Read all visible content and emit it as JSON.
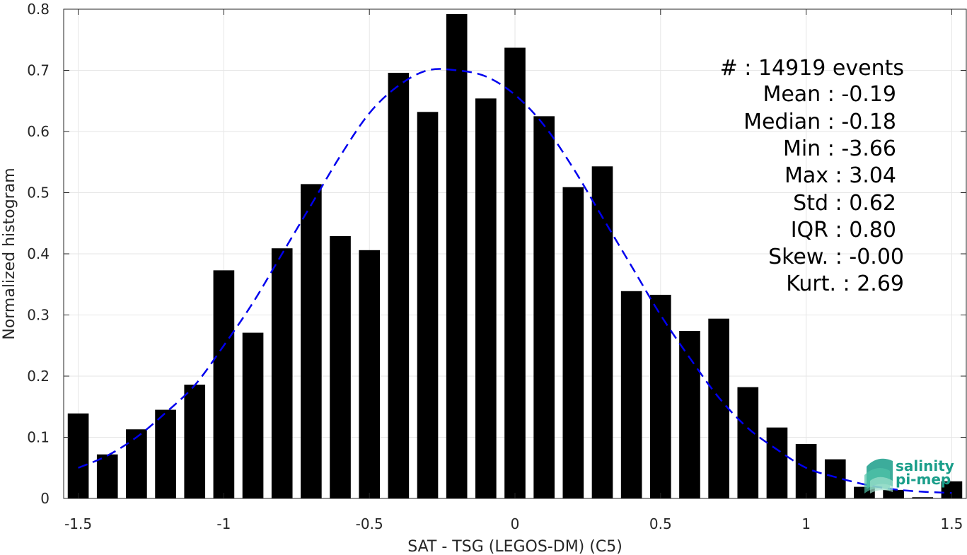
{
  "chart_data": {
    "type": "bar",
    "xlabel": "SAT - TSG (LEGOS-DM) (C5)",
    "ylabel": "Normalized histogram",
    "xlim": [
      -1.55,
      1.55
    ],
    "ylim": [
      0,
      0.8
    ],
    "xticks": [
      -1.5,
      -1,
      -0.5,
      0,
      0.5,
      1,
      1.5
    ],
    "xtick_labels": [
      "-1.5",
      "-1",
      "-0.5",
      "0",
      "0.5",
      "1",
      "1.5"
    ],
    "yticks": [
      0,
      0.1,
      0.2,
      0.3,
      0.4,
      0.5,
      0.6,
      0.7,
      0.8
    ],
    "ytick_labels": [
      "0",
      "0.1",
      "0.2",
      "0.3",
      "0.4",
      "0.5",
      "0.6",
      "0.7",
      "0.8"
    ],
    "grid": true,
    "bar_color": "#000000",
    "bins": [
      -1.5,
      -1.4,
      -1.3,
      -1.2,
      -1.1,
      -1.0,
      -0.9,
      -0.8,
      -0.7,
      -0.6,
      -0.5,
      -0.4,
      -0.3,
      -0.2,
      -0.1,
      0.0,
      0.1,
      0.2,
      0.3,
      0.4,
      0.5,
      0.6,
      0.7,
      0.8,
      0.9,
      1.0,
      1.1,
      1.2,
      1.3,
      1.4,
      1.5
    ],
    "values": [
      0.139,
      0.072,
      0.113,
      0.145,
      0.186,
      0.373,
      0.271,
      0.409,
      0.514,
      0.429,
      0.406,
      0.696,
      0.632,
      0.792,
      0.654,
      0.737,
      0.625,
      0.509,
      0.543,
      0.339,
      0.333,
      0.274,
      0.294,
      0.182,
      0.116,
      0.089,
      0.064,
      0.019,
      0.014,
      0.002,
      0.028
    ],
    "fit": {
      "style": "dashed",
      "color": "#0000ee",
      "x": [
        -1.5,
        -1.4,
        -1.3,
        -1.2,
        -1.1,
        -1.0,
        -0.9,
        -0.8,
        -0.7,
        -0.6,
        -0.5,
        -0.4,
        -0.3,
        -0.2,
        -0.1,
        0.0,
        0.1,
        0.2,
        0.3,
        0.4,
        0.5,
        0.6,
        0.7,
        0.8,
        0.9,
        1.0,
        1.1,
        1.2,
        1.3,
        1.4,
        1.5
      ],
      "y": [
        0.05,
        0.07,
        0.1,
        0.14,
        0.185,
        0.25,
        0.32,
        0.4,
        0.48,
        0.56,
        0.63,
        0.675,
        0.7,
        0.7,
        0.69,
        0.66,
        0.61,
        0.54,
        0.46,
        0.38,
        0.3,
        0.23,
        0.165,
        0.115,
        0.08,
        0.05,
        0.035,
        0.023,
        0.015,
        0.011,
        0.009
      ]
    }
  },
  "stats": {
    "events": "#  : 14919 events",
    "mean": "Mean : -0.19",
    "median": "Median : -0.18",
    "min": "Min : -3.66",
    "max": "Max : 3.04",
    "std": "Std : 0.62",
    "iqr": "IQR : 0.80",
    "skew": "Skew. : -0.00",
    "kurt": "Kurt. : 2.69"
  },
  "logo": {
    "line1": "salinity",
    "line2": "pi-mep",
    "color": "#1a9e8a"
  }
}
